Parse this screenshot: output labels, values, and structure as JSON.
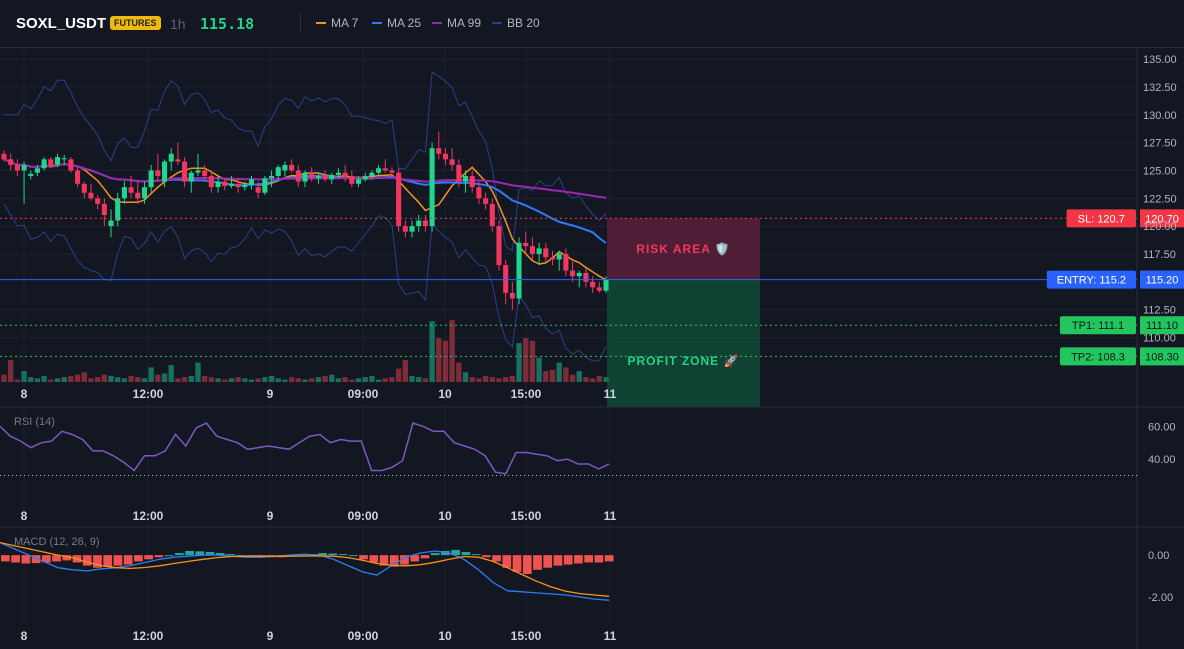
{
  "header": {
    "symbol": "SOXL_USDT",
    "badge": "FUTURES",
    "timeframe": "1h",
    "price": "115.18",
    "legend": [
      {
        "label": "MA 7",
        "color": "#f7931a"
      },
      {
        "label": "MA 25",
        "color": "#2f7cf6"
      },
      {
        "label": "MA 99",
        "color": "#9c27b0"
      },
      {
        "label": "BB 20",
        "color": "#2a3f8a"
      }
    ]
  },
  "x_ticks": [
    "8",
    "12:00",
    "9",
    "09:00",
    "10",
    "15:00",
    "11"
  ],
  "price_axis": [
    "135.00",
    "132.50",
    "130.00",
    "127.50",
    "125.00",
    "122.50",
    "120.00",
    "117.50",
    "112.50",
    "110.00"
  ],
  "rsi_axis": [
    "60.00",
    "40.00"
  ],
  "macd_axis": [
    "0.00",
    "-2.00"
  ],
  "rsi_label": "RSI (14)",
  "macd_label": "MACD (12, 26, 9)",
  "zones": {
    "risk_label": "RISK AREA 🛡️",
    "profit_label": "PROFIT ZONE 🚀"
  },
  "levels": [
    {
      "name": "sl",
      "label": "SL: 120.7",
      "value_label": "120.70",
      "price": 120.7,
      "color": "#f23645"
    },
    {
      "name": "entry",
      "label": "ENTRY: 115.2",
      "value_label": "115.20",
      "price": 115.2,
      "color": "#2962ff"
    },
    {
      "name": "tp1",
      "label": "TP1: 111.1",
      "value_label": "111.10",
      "price": 111.1,
      "color": "#22c55e"
    },
    {
      "name": "tp2",
      "label": "TP2: 108.3",
      "value_label": "108.30",
      "price": 108.3,
      "color": "#22c55e"
    }
  ],
  "colors": {
    "up": "#1fd68c",
    "down": "#f23660",
    "rsi": "#7e57c2",
    "macd": "#2f7cf6",
    "signal": "#f7931a"
  },
  "chart_data": {
    "type": "candlestick",
    "ylim": [
      106,
      136
    ],
    "rsi_ylim": [
      15,
      70
    ],
    "macd_ylim": [
      -3,
      1.2
    ],
    "candles": [
      [
        126.5,
        126.8,
        125.8,
        126.0
      ],
      [
        126.0,
        126.5,
        125.0,
        125.5
      ],
      [
        125.5,
        126.0,
        124.5,
        125.0
      ],
      [
        125.0,
        125.8,
        122.0,
        125.5
      ],
      [
        124.5,
        125.0,
        124.2,
        124.7
      ],
      [
        124.8,
        125.5,
        124.5,
        125.2
      ],
      [
        125.2,
        126.2,
        125.0,
        126.0
      ],
      [
        126.0,
        126.2,
        125.2,
        125.4
      ],
      [
        125.5,
        126.5,
        125.3,
        126.2
      ],
      [
        126.0,
        126.4,
        125.5,
        126.1
      ],
      [
        126.0,
        126.2,
        124.8,
        125.0
      ],
      [
        125.0,
        125.3,
        123.5,
        123.8
      ],
      [
        123.8,
        124.0,
        122.5,
        123.0
      ],
      [
        123.0,
        123.8,
        122.3,
        122.5
      ],
      [
        122.5,
        122.8,
        121.5,
        122.0
      ],
      [
        122.0,
        122.5,
        120.0,
        121.0
      ],
      [
        120.0,
        121.5,
        119.0,
        120.5
      ],
      [
        120.5,
        123.0,
        120.0,
        122.5
      ],
      [
        122.5,
        124.0,
        122.0,
        123.5
      ],
      [
        123.5,
        124.5,
        122.5,
        123.0
      ],
      [
        123.0,
        124.0,
        122.0,
        122.5
      ],
      [
        122.5,
        124.0,
        122.0,
        123.5
      ],
      [
        123.5,
        125.5,
        123.0,
        125.0
      ],
      [
        125.0,
        126.5,
        124.0,
        124.5
      ],
      [
        124.0,
        126.0,
        123.5,
        125.8
      ],
      [
        125.8,
        127.0,
        125.0,
        126.5
      ],
      [
        126.0,
        127.5,
        125.5,
        125.8
      ],
      [
        125.8,
        126.2,
        123.5,
        124.0
      ],
      [
        124.0,
        125.0,
        123.0,
        124.8
      ],
      [
        124.8,
        126.5,
        124.5,
        125.0
      ],
      [
        125.0,
        125.5,
        124.0,
        124.5
      ],
      [
        124.5,
        125.0,
        123.0,
        123.5
      ],
      [
        123.5,
        124.5,
        123.0,
        124.0
      ],
      [
        124.0,
        124.2,
        123.2,
        123.6
      ],
      [
        123.6,
        124.5,
        123.4,
        123.8
      ],
      [
        123.8,
        124.3,
        123.0,
        123.5
      ],
      [
        123.5,
        124.0,
        123.2,
        123.7
      ],
      [
        123.7,
        124.5,
        123.3,
        124.2
      ],
      [
        123.5,
        124.0,
        122.5,
        123.0
      ],
      [
        123.0,
        124.5,
        122.8,
        124.3
      ],
      [
        124.3,
        125.0,
        123.5,
        124.5
      ],
      [
        124.5,
        125.5,
        124.2,
        125.3
      ],
      [
        125.0,
        125.8,
        124.5,
        125.5
      ],
      [
        125.5,
        126.0,
        124.8,
        125.0
      ],
      [
        125.0,
        125.5,
        123.5,
        124.0
      ],
      [
        124.0,
        125.0,
        123.5,
        124.8
      ],
      [
        124.8,
        125.3,
        124.0,
        124.3
      ],
      [
        124.3,
        124.8,
        123.8,
        124.5
      ],
      [
        124.5,
        125.0,
        124.0,
        124.2
      ],
      [
        124.2,
        124.8,
        123.8,
        124.6
      ],
      [
        124.6,
        125.2,
        124.3,
        124.8
      ],
      [
        124.8,
        125.5,
        124.0,
        124.5
      ],
      [
        124.5,
        125.0,
        123.5,
        123.8
      ],
      [
        123.8,
        124.5,
        123.5,
        124.2
      ],
      [
        124.2,
        124.8,
        124.0,
        124.5
      ],
      [
        124.5,
        125.0,
        124.2,
        124.8
      ],
      [
        124.8,
        125.5,
        124.5,
        125.2
      ],
      [
        125.2,
        126.0,
        124.8,
        125.0
      ],
      [
        125.0,
        125.3,
        124.5,
        124.8
      ],
      [
        124.8,
        125.2,
        119.5,
        120.0
      ],
      [
        120.0,
        120.5,
        119.0,
        119.5
      ],
      [
        119.5,
        120.5,
        119.0,
        120.0
      ],
      [
        120.0,
        121.0,
        119.5,
        120.5
      ],
      [
        120.5,
        121.0,
        119.5,
        120.0
      ],
      [
        120.0,
        127.5,
        119.5,
        127.0
      ],
      [
        127.0,
        128.5,
        126.0,
        126.5
      ],
      [
        126.5,
        127.0,
        125.5,
        126.0
      ],
      [
        126.0,
        127.0,
        125.0,
        125.5
      ],
      [
        125.5,
        126.0,
        123.5,
        124.0
      ],
      [
        124.0,
        125.0,
        123.0,
        124.5
      ],
      [
        124.5,
        125.0,
        123.0,
        123.5
      ],
      [
        123.5,
        124.0,
        122.0,
        122.5
      ],
      [
        122.5,
        123.0,
        121.5,
        122.0
      ],
      [
        122.0,
        122.5,
        119.5,
        120.0
      ],
      [
        120.0,
        120.5,
        116.0,
        116.5
      ],
      [
        116.5,
        117.0,
        113.0,
        114.0
      ],
      [
        114.0,
        115.0,
        112.5,
        113.5
      ],
      [
        113.5,
        119.0,
        113.0,
        118.5
      ],
      [
        118.5,
        119.5,
        117.5,
        118.2
      ],
      [
        118.2,
        119.0,
        117.0,
        117.5
      ],
      [
        117.5,
        118.5,
        116.5,
        118.0
      ],
      [
        118.0,
        118.5,
        116.8,
        117.2
      ],
      [
        117.2,
        117.8,
        116.5,
        117.0
      ],
      [
        117.0,
        117.8,
        116.0,
        117.5
      ],
      [
        117.5,
        118.0,
        115.5,
        116.0
      ],
      [
        116.0,
        116.8,
        115.0,
        115.5
      ],
      [
        115.5,
        116.0,
        114.5,
        115.8
      ],
      [
        115.8,
        116.2,
        114.5,
        115.0
      ],
      [
        115.0,
        115.5,
        114.0,
        114.5
      ],
      [
        114.5,
        115.0,
        114.0,
        114.2
      ],
      [
        114.2,
        115.5,
        114.0,
        115.18
      ]
    ],
    "volume": [
      30,
      90,
      10,
      45,
      20,
      15,
      25,
      10,
      15,
      20,
      25,
      30,
      40,
      15,
      20,
      30,
      25,
      20,
      15,
      25,
      20,
      15,
      60,
      30,
      35,
      70,
      15,
      20,
      25,
      80,
      25,
      20,
      15,
      10,
      15,
      20,
      15,
      10,
      15,
      20,
      25,
      15,
      10,
      20,
      15,
      10,
      15,
      20,
      25,
      30,
      15,
      20,
      10,
      15,
      20,
      25,
      10,
      15,
      20,
      55,
      90,
      25,
      20,
      15,
      250,
      180,
      170,
      255,
      80,
      40,
      20,
      15,
      25,
      20,
      15,
      20,
      25,
      160,
      180,
      170,
      100,
      45,
      50,
      80,
      60,
      30,
      45,
      20,
      15,
      25,
      20
    ],
    "rsi": [
      60,
      54,
      51,
      47,
      50,
      51,
      57,
      55,
      52,
      45,
      45,
      42,
      38,
      33,
      42,
      42,
      45,
      55,
      48,
      59,
      62,
      54,
      52,
      50,
      46,
      47,
      48,
      47,
      46,
      50,
      54,
      55,
      50,
      52,
      51,
      51,
      33,
      33,
      35,
      39,
      62,
      60,
      57,
      57,
      50,
      48,
      46,
      42,
      32,
      31,
      44,
      44,
      43,
      42,
      39,
      40,
      37,
      37,
      34,
      37
    ],
    "macd_hist": [
      -0.3,
      -0.35,
      -0.4,
      -0.38,
      -0.35,
      -0.3,
      -0.25,
      -0.35,
      -0.5,
      -0.6,
      -0.55,
      -0.5,
      -0.45,
      -0.3,
      -0.2,
      -0.1,
      0.0,
      0.1,
      0.2,
      0.18,
      0.15,
      0.1,
      0.05,
      0.0,
      -0.05,
      -0.05,
      -0.1,
      -0.1,
      -0.05,
      0.0,
      0.05,
      0.1,
      0.08,
      0.05,
      0.0,
      -0.2,
      -0.35,
      -0.5,
      -0.55,
      -0.45,
      -0.3,
      -0.15,
      0.1,
      0.2,
      0.25,
      0.15,
      0.05,
      -0.1,
      -0.3,
      -0.6,
      -0.8,
      -0.9,
      -0.7,
      -0.6,
      -0.5,
      -0.45,
      -0.4,
      -0.35,
      -0.35,
      -0.3
    ],
    "macd_line": [
      0.6,
      0.3,
      0.0,
      -0.3,
      -0.6,
      -0.7,
      -0.75,
      -0.65,
      -0.6,
      -0.5,
      -0.35,
      -0.2,
      -0.1,
      -0.05,
      0.0,
      0.0,
      -0.05,
      -0.1,
      -0.1,
      -0.05,
      0.0,
      0.05,
      0.0,
      -0.2,
      -0.5,
      -0.8,
      -0.95,
      -0.5,
      -0.1,
      0.1,
      0.2,
      0.1,
      -0.2,
      -0.7,
      -1.3,
      -1.7,
      -1.75,
      -1.8,
      -1.85,
      -1.9,
      -2.0,
      -2.1,
      -2.15
    ]
  }
}
